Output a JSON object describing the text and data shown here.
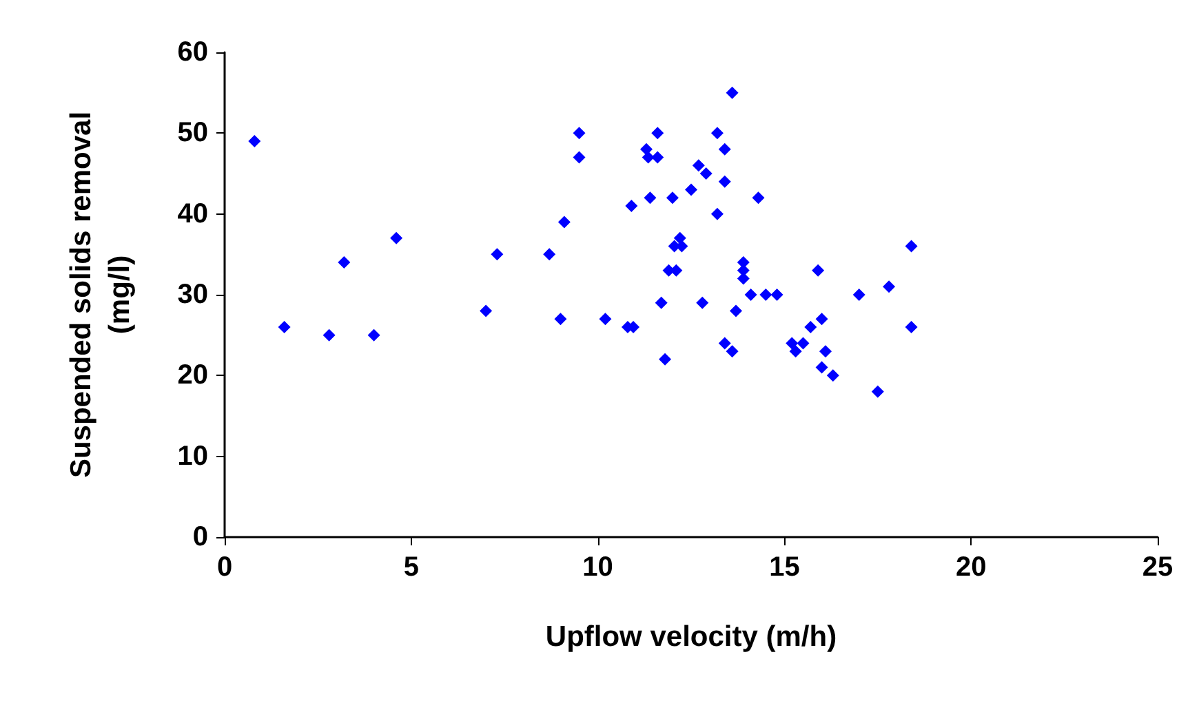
{
  "chart_data": {
    "type": "scatter",
    "xlabel": "Upflow velocity (m/h)",
    "ylabel": "Suspended solids removal\n(mg/l)",
    "x": [
      0.8,
      1.6,
      2.8,
      3.2,
      4.0,
      4.6,
      7.0,
      7.3,
      8.7,
      9.0,
      9.1,
      9.5,
      9.5,
      10.2,
      10.8,
      10.9,
      10.95,
      11.3,
      11.35,
      11.4,
      11.6,
      11.6,
      11.7,
      11.8,
      11.9,
      12.0,
      12.05,
      12.1,
      12.2,
      12.25,
      12.5,
      12.7,
      12.8,
      12.9,
      13.2,
      13.2,
      13.4,
      13.4,
      13.4,
      13.6,
      13.6,
      13.7,
      13.9,
      13.9,
      13.9,
      14.1,
      14.3,
      14.5,
      14.8,
      15.2,
      15.3,
      15.5,
      15.7,
      15.9,
      16.0,
      16.0,
      16.1,
      16.3,
      17.0,
      17.5,
      17.8,
      18.4,
      18.4
    ],
    "series": [
      {
        "color": "#0000ff",
        "values": [
          49,
          26,
          25,
          34,
          25,
          37,
          28,
          35,
          35,
          27,
          39,
          50,
          47,
          27,
          26,
          41,
          26,
          48,
          47,
          42,
          50,
          47,
          29,
          22,
          33,
          42,
          36,
          33,
          37,
          36,
          43,
          46,
          29,
          45,
          40,
          50,
          48,
          44,
          24,
          55,
          23,
          28,
          34,
          33,
          32,
          30,
          42,
          30,
          30,
          24,
          23,
          24,
          26,
          33,
          21,
          27,
          23,
          20,
          30,
          18,
          31,
          36,
          26
        ]
      }
    ],
    "xlim": [
      0,
      25
    ],
    "xticks": [
      0,
      5,
      10,
      15,
      20,
      25
    ],
    "ylim": [
      0,
      60
    ],
    "yticks": [
      0,
      10,
      20,
      30,
      40,
      50,
      60
    ],
    "grid": false,
    "marker": "diamond"
  }
}
